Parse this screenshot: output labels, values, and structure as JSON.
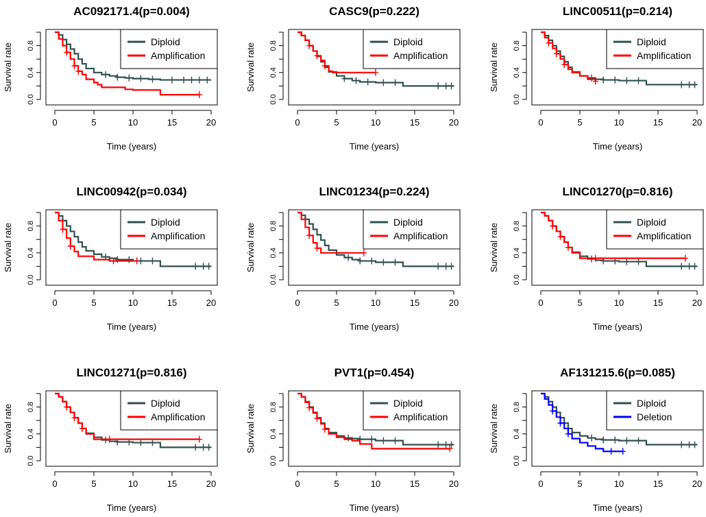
{
  "colors": {
    "diploid": "#2f4f4f",
    "amplification": "#ff0000",
    "deletion": "#0000ff",
    "axis": "#000000"
  },
  "chart_data": [
    {
      "type": "line",
      "title": "AC092171.4(p=0.004)",
      "xlabel": "Time (years)",
      "ylabel": "Survival rate",
      "xlim": [
        0,
        20
      ],
      "ylim": [
        0,
        1
      ],
      "xticks": [
        "0",
        "5",
        "10",
        "15",
        "20"
      ],
      "yticks": [
        "0.0",
        "0.4",
        "0.8"
      ],
      "legend": {
        "position": "top-right",
        "entries": [
          "Diploid",
          "Amplification"
        ]
      },
      "series": [
        {
          "name": "Diploid",
          "color": "#2f4f4f",
          "x": [
            0,
            0.5,
            1,
            1.5,
            2,
            2.5,
            3,
            3.5,
            4,
            5,
            6,
            7,
            8,
            9,
            10,
            12,
            13.5,
            20
          ],
          "y": [
            1.0,
            0.96,
            0.89,
            0.82,
            0.75,
            0.68,
            0.6,
            0.53,
            0.46,
            0.4,
            0.37,
            0.35,
            0.33,
            0.32,
            0.31,
            0.3,
            0.29,
            0.29
          ],
          "censor": [
            6.5,
            8,
            9.5,
            11,
            12.5,
            15,
            16.5,
            17.5,
            18.5,
            19.5
          ]
        },
        {
          "name": "Amplification",
          "color": "#ff0000",
          "x": [
            0,
            0.5,
            1,
            1.5,
            2,
            2.5,
            3,
            3.5,
            4,
            5,
            5.5,
            6,
            9,
            10,
            13.5,
            18.5
          ],
          "y": [
            1.0,
            0.9,
            0.8,
            0.7,
            0.6,
            0.5,
            0.42,
            0.37,
            0.3,
            0.25,
            0.22,
            0.18,
            0.15,
            0.14,
            0.07,
            0.07
          ],
          "censor": [
            1.5,
            2.5,
            3,
            18.5
          ]
        }
      ]
    },
    {
      "type": "line",
      "title": "CASC9(p=0.222)",
      "xlabel": "Time (years)",
      "ylabel": "Survival rate",
      "xlim": [
        0,
        20
      ],
      "ylim": [
        0,
        1
      ],
      "xticks": [
        "0",
        "5",
        "10",
        "15",
        "20"
      ],
      "yticks": [
        "0.0",
        "0.4",
        "0.8"
      ],
      "legend": {
        "position": "top-right",
        "entries": [
          "Diploid",
          "Amplification"
        ]
      },
      "series": [
        {
          "name": "Diploid",
          "color": "#2f4f4f",
          "x": [
            0,
            0.5,
            1,
            1.5,
            2,
            2.5,
            3,
            3.5,
            4,
            5,
            6,
            7,
            8,
            10,
            13.5,
            20
          ],
          "y": [
            1.0,
            0.95,
            0.88,
            0.8,
            0.72,
            0.64,
            0.56,
            0.48,
            0.41,
            0.35,
            0.31,
            0.28,
            0.26,
            0.25,
            0.2,
            0.2
          ],
          "censor": [
            6,
            7.5,
            9,
            11,
            12.5,
            18,
            19,
            19.7
          ]
        },
        {
          "name": "Amplification",
          "color": "#ff0000",
          "x": [
            0,
            0.5,
            1,
            1.5,
            2,
            2.5,
            3,
            3.5,
            4,
            4.5,
            6,
            8,
            10
          ],
          "y": [
            1.0,
            0.95,
            0.88,
            0.8,
            0.72,
            0.65,
            0.58,
            0.5,
            0.42,
            0.4,
            0.4,
            0.4,
            0.4
          ],
          "censor": [
            1.5,
            2.5,
            3.5,
            10
          ]
        }
      ]
    },
    {
      "type": "line",
      "title": "LINC00511(p=0.214)",
      "xlabel": "Time (years)",
      "ylabel": "Survival rate",
      "xlim": [
        0,
        20
      ],
      "ylim": [
        0,
        1
      ],
      "xticks": [
        "0",
        "5",
        "10",
        "15",
        "20"
      ],
      "yticks": [
        "0.0",
        "0.4",
        "0.8"
      ],
      "legend": {
        "position": "top-right",
        "entries": [
          "Diploid",
          "Amplification"
        ]
      },
      "series": [
        {
          "name": "Diploid",
          "color": "#2f4f4f",
          "x": [
            0,
            0.5,
            1,
            1.5,
            2,
            2.5,
            3,
            3.5,
            4,
            5,
            6,
            7,
            8,
            10,
            13.5,
            20
          ],
          "y": [
            1.0,
            0.95,
            0.88,
            0.8,
            0.72,
            0.64,
            0.56,
            0.48,
            0.41,
            0.35,
            0.32,
            0.3,
            0.29,
            0.28,
            0.22,
            0.22
          ],
          "censor": [
            6.5,
            8,
            9.5,
            11,
            12.5,
            18,
            19,
            19.7
          ]
        },
        {
          "name": "Amplification",
          "color": "#ff0000",
          "x": [
            0,
            0.5,
            1,
            1.5,
            2,
            2.5,
            3,
            3.5,
            4,
            5,
            6,
            7
          ],
          "y": [
            1.0,
            0.92,
            0.84,
            0.76,
            0.68,
            0.6,
            0.52,
            0.45,
            0.4,
            0.35,
            0.3,
            0.27
          ],
          "censor": [
            1,
            2,
            3,
            7
          ]
        }
      ]
    },
    {
      "type": "line",
      "title": "LINC00942(p=0.034)",
      "xlabel": "Time (years)",
      "ylabel": "Survival rate",
      "xlim": [
        0,
        20
      ],
      "ylim": [
        0,
        1
      ],
      "xticks": [
        "0",
        "5",
        "10",
        "15",
        "20"
      ],
      "yticks": [
        "0.0",
        "0.4",
        "0.8"
      ],
      "legend": {
        "position": "top-right",
        "entries": [
          "Diploid",
          "Amplification"
        ]
      },
      "series": [
        {
          "name": "Diploid",
          "color": "#2f4f4f",
          "x": [
            0,
            0.5,
            1,
            1.5,
            2,
            2.5,
            3,
            3.5,
            4,
            5,
            6,
            7,
            8,
            10,
            13.5,
            20
          ],
          "y": [
            1.0,
            0.95,
            0.88,
            0.8,
            0.72,
            0.64,
            0.56,
            0.49,
            0.43,
            0.38,
            0.34,
            0.32,
            0.3,
            0.28,
            0.2,
            0.2
          ],
          "censor": [
            6.5,
            8,
            9.5,
            11,
            12.5,
            18,
            19,
            19.7
          ]
        },
        {
          "name": "Amplification",
          "color": "#ff0000",
          "x": [
            0,
            0.5,
            1,
            1.5,
            2,
            2.5,
            3,
            5,
            7,
            10
          ],
          "y": [
            1.0,
            0.88,
            0.75,
            0.62,
            0.5,
            0.42,
            0.35,
            0.3,
            0.28,
            0.28
          ],
          "censor": [
            1,
            2,
            7.5,
            10.5
          ]
        }
      ]
    },
    {
      "type": "line",
      "title": "LINC01234(p=0.224)",
      "xlabel": "Time (years)",
      "ylabel": "Survival rate",
      "xlim": [
        0,
        20
      ],
      "ylim": [
        0,
        1
      ],
      "xticks": [
        "0",
        "5",
        "10",
        "15",
        "20"
      ],
      "yticks": [
        "0.0",
        "0.4",
        "0.8"
      ],
      "legend": {
        "position": "top-right",
        "entries": [
          "Diploid",
          "Amplification"
        ]
      },
      "series": [
        {
          "name": "Diploid",
          "color": "#2f4f4f",
          "x": [
            0,
            0.5,
            1,
            1.5,
            2,
            2.5,
            3,
            3.5,
            4,
            5,
            6,
            7,
            8,
            10,
            13.5,
            20
          ],
          "y": [
            1.0,
            0.96,
            0.9,
            0.83,
            0.75,
            0.67,
            0.59,
            0.51,
            0.44,
            0.37,
            0.33,
            0.3,
            0.28,
            0.26,
            0.2,
            0.2
          ],
          "censor": [
            6.5,
            8,
            9.5,
            11,
            12.5,
            18,
            19,
            19.7
          ]
        },
        {
          "name": "Amplification",
          "color": "#ff0000",
          "x": [
            0,
            0.5,
            1,
            1.5,
            2,
            2.5,
            3,
            5,
            8.5
          ],
          "y": [
            1.0,
            0.9,
            0.78,
            0.66,
            0.55,
            0.47,
            0.4,
            0.4,
            0.4
          ],
          "censor": [
            1.5,
            2.5,
            8.5
          ]
        }
      ]
    },
    {
      "type": "line",
      "title": "LINC01270(p=0.816)",
      "xlabel": "Time (years)",
      "ylabel": "Survival rate",
      "xlim": [
        0,
        20
      ],
      "ylim": [
        0,
        1
      ],
      "xticks": [
        "0",
        "5",
        "10",
        "15",
        "20"
      ],
      "yticks": [
        "0.0",
        "0.4",
        "0.8"
      ],
      "legend": {
        "position": "top-right",
        "entries": [
          "Diploid",
          "Amplification"
        ]
      },
      "series": [
        {
          "name": "Diploid",
          "color": "#2f4f4f",
          "x": [
            0,
            0.5,
            1,
            1.5,
            2,
            2.5,
            3,
            3.5,
            4,
            5,
            6,
            7,
            8,
            10,
            13.5,
            20
          ],
          "y": [
            1.0,
            0.95,
            0.88,
            0.8,
            0.72,
            0.64,
            0.56,
            0.48,
            0.41,
            0.35,
            0.31,
            0.29,
            0.28,
            0.27,
            0.2,
            0.2
          ],
          "censor": [
            6.5,
            8,
            9.5,
            11,
            12.5,
            18,
            19,
            19.7
          ]
        },
        {
          "name": "Amplification",
          "color": "#ff0000",
          "x": [
            0,
            0.5,
            1,
            1.5,
            2,
            2.5,
            3,
            3.5,
            4,
            5,
            7,
            10,
            18.5
          ],
          "y": [
            1.0,
            0.95,
            0.88,
            0.8,
            0.72,
            0.64,
            0.56,
            0.48,
            0.4,
            0.32,
            0.32,
            0.32,
            0.32
          ],
          "censor": [
            1.5,
            2.5,
            3.5,
            7,
            18.5
          ]
        }
      ]
    },
    {
      "type": "line",
      "title": "LINC01271(p=0.816)",
      "xlabel": "Time (years)",
      "ylabel": "Survival rate",
      "xlim": [
        0,
        20
      ],
      "ylim": [
        0,
        1
      ],
      "xticks": [
        "0",
        "5",
        "10",
        "15",
        "20"
      ],
      "yticks": [
        "0.0",
        "0.4",
        "0.8"
      ],
      "legend": {
        "position": "top-right",
        "entries": [
          "Diploid",
          "Amplification"
        ]
      },
      "series": [
        {
          "name": "Diploid",
          "color": "#2f4f4f",
          "x": [
            0,
            0.5,
            1,
            1.5,
            2,
            2.5,
            3,
            3.5,
            4,
            5,
            6,
            7,
            8,
            10,
            13.5,
            20
          ],
          "y": [
            1.0,
            0.95,
            0.88,
            0.8,
            0.72,
            0.64,
            0.56,
            0.48,
            0.41,
            0.35,
            0.31,
            0.29,
            0.28,
            0.27,
            0.2,
            0.2
          ],
          "censor": [
            6.5,
            8,
            9.5,
            11,
            12.5,
            18,
            19,
            19.7
          ]
        },
        {
          "name": "Amplification",
          "color": "#ff0000",
          "x": [
            0,
            0.5,
            1,
            1.5,
            2,
            2.5,
            3,
            3.5,
            4,
            5,
            7,
            10,
            18.5
          ],
          "y": [
            1.0,
            0.95,
            0.88,
            0.8,
            0.72,
            0.64,
            0.56,
            0.48,
            0.4,
            0.32,
            0.32,
            0.32,
            0.32
          ],
          "censor": [
            1.5,
            2.5,
            3.5,
            7,
            18.5
          ]
        }
      ]
    },
    {
      "type": "line",
      "title": "PVT1(p=0.454)",
      "xlabel": "Time (years)",
      "ylabel": "Survival rate",
      "xlim": [
        0,
        20
      ],
      "ylim": [
        0,
        1
      ],
      "xticks": [
        "0",
        "5",
        "10",
        "15",
        "20"
      ],
      "yticks": [
        "0.0",
        "0.4",
        "0.8"
      ],
      "legend": {
        "position": "top-right",
        "entries": [
          "Diploid",
          "Amplification"
        ]
      },
      "series": [
        {
          "name": "Diploid",
          "color": "#2f4f4f",
          "x": [
            0,
            0.5,
            1,
            1.5,
            2,
            2.5,
            3,
            3.5,
            4,
            5,
            6,
            7,
            8,
            10,
            13.5,
            20
          ],
          "y": [
            1.0,
            0.95,
            0.88,
            0.8,
            0.72,
            0.64,
            0.56,
            0.48,
            0.42,
            0.37,
            0.34,
            0.33,
            0.32,
            0.3,
            0.24,
            0.24
          ],
          "censor": [
            6.5,
            8,
            9.5,
            11,
            12.5,
            18,
            19,
            19.7
          ]
        },
        {
          "name": "Amplification",
          "color": "#ff0000",
          "x": [
            0,
            0.5,
            1,
            1.5,
            2,
            2.5,
            3,
            3.5,
            4,
            5,
            6,
            7,
            8,
            9.5,
            19.5
          ],
          "y": [
            1.0,
            0.95,
            0.87,
            0.79,
            0.71,
            0.63,
            0.55,
            0.47,
            0.4,
            0.35,
            0.32,
            0.3,
            0.25,
            0.18,
            0.18
          ],
          "censor": [
            1.5,
            2.5,
            3.5,
            19.5
          ]
        }
      ]
    },
    {
      "type": "line",
      "title": "AF131215.6(p=0.085)",
      "xlabel": "Time (years)",
      "ylabel": "Survival rate",
      "xlim": [
        0,
        20
      ],
      "ylim": [
        0,
        1
      ],
      "xticks": [
        "0",
        "5",
        "10",
        "15",
        "20"
      ],
      "yticks": [
        "0.0",
        "0.4",
        "0.8"
      ],
      "legend": {
        "position": "top-right",
        "entries": [
          "Diploid",
          "Deletion"
        ]
      },
      "series": [
        {
          "name": "Diploid",
          "color": "#2f4f4f",
          "x": [
            0,
            0.5,
            1,
            1.5,
            2,
            2.5,
            3,
            3.5,
            4,
            5,
            6,
            7,
            8,
            10,
            13.5,
            20
          ],
          "y": [
            1.0,
            0.95,
            0.88,
            0.8,
            0.72,
            0.64,
            0.56,
            0.48,
            0.42,
            0.37,
            0.34,
            0.32,
            0.31,
            0.3,
            0.24,
            0.24
          ],
          "censor": [
            6.5,
            8,
            9.5,
            11,
            12.5,
            18,
            19,
            19.7
          ]
        },
        {
          "name": "Deletion",
          "color": "#0000ff",
          "x": [
            0,
            0.5,
            1,
            1.5,
            2,
            2.5,
            3,
            3.5,
            4,
            5,
            6,
            7,
            8,
            10.5
          ],
          "y": [
            1.0,
            0.92,
            0.83,
            0.74,
            0.65,
            0.56,
            0.48,
            0.4,
            0.33,
            0.27,
            0.22,
            0.18,
            0.14,
            0.14
          ],
          "censor": [
            1.5,
            2.5,
            3.5,
            9,
            10.5
          ]
        }
      ]
    }
  ]
}
